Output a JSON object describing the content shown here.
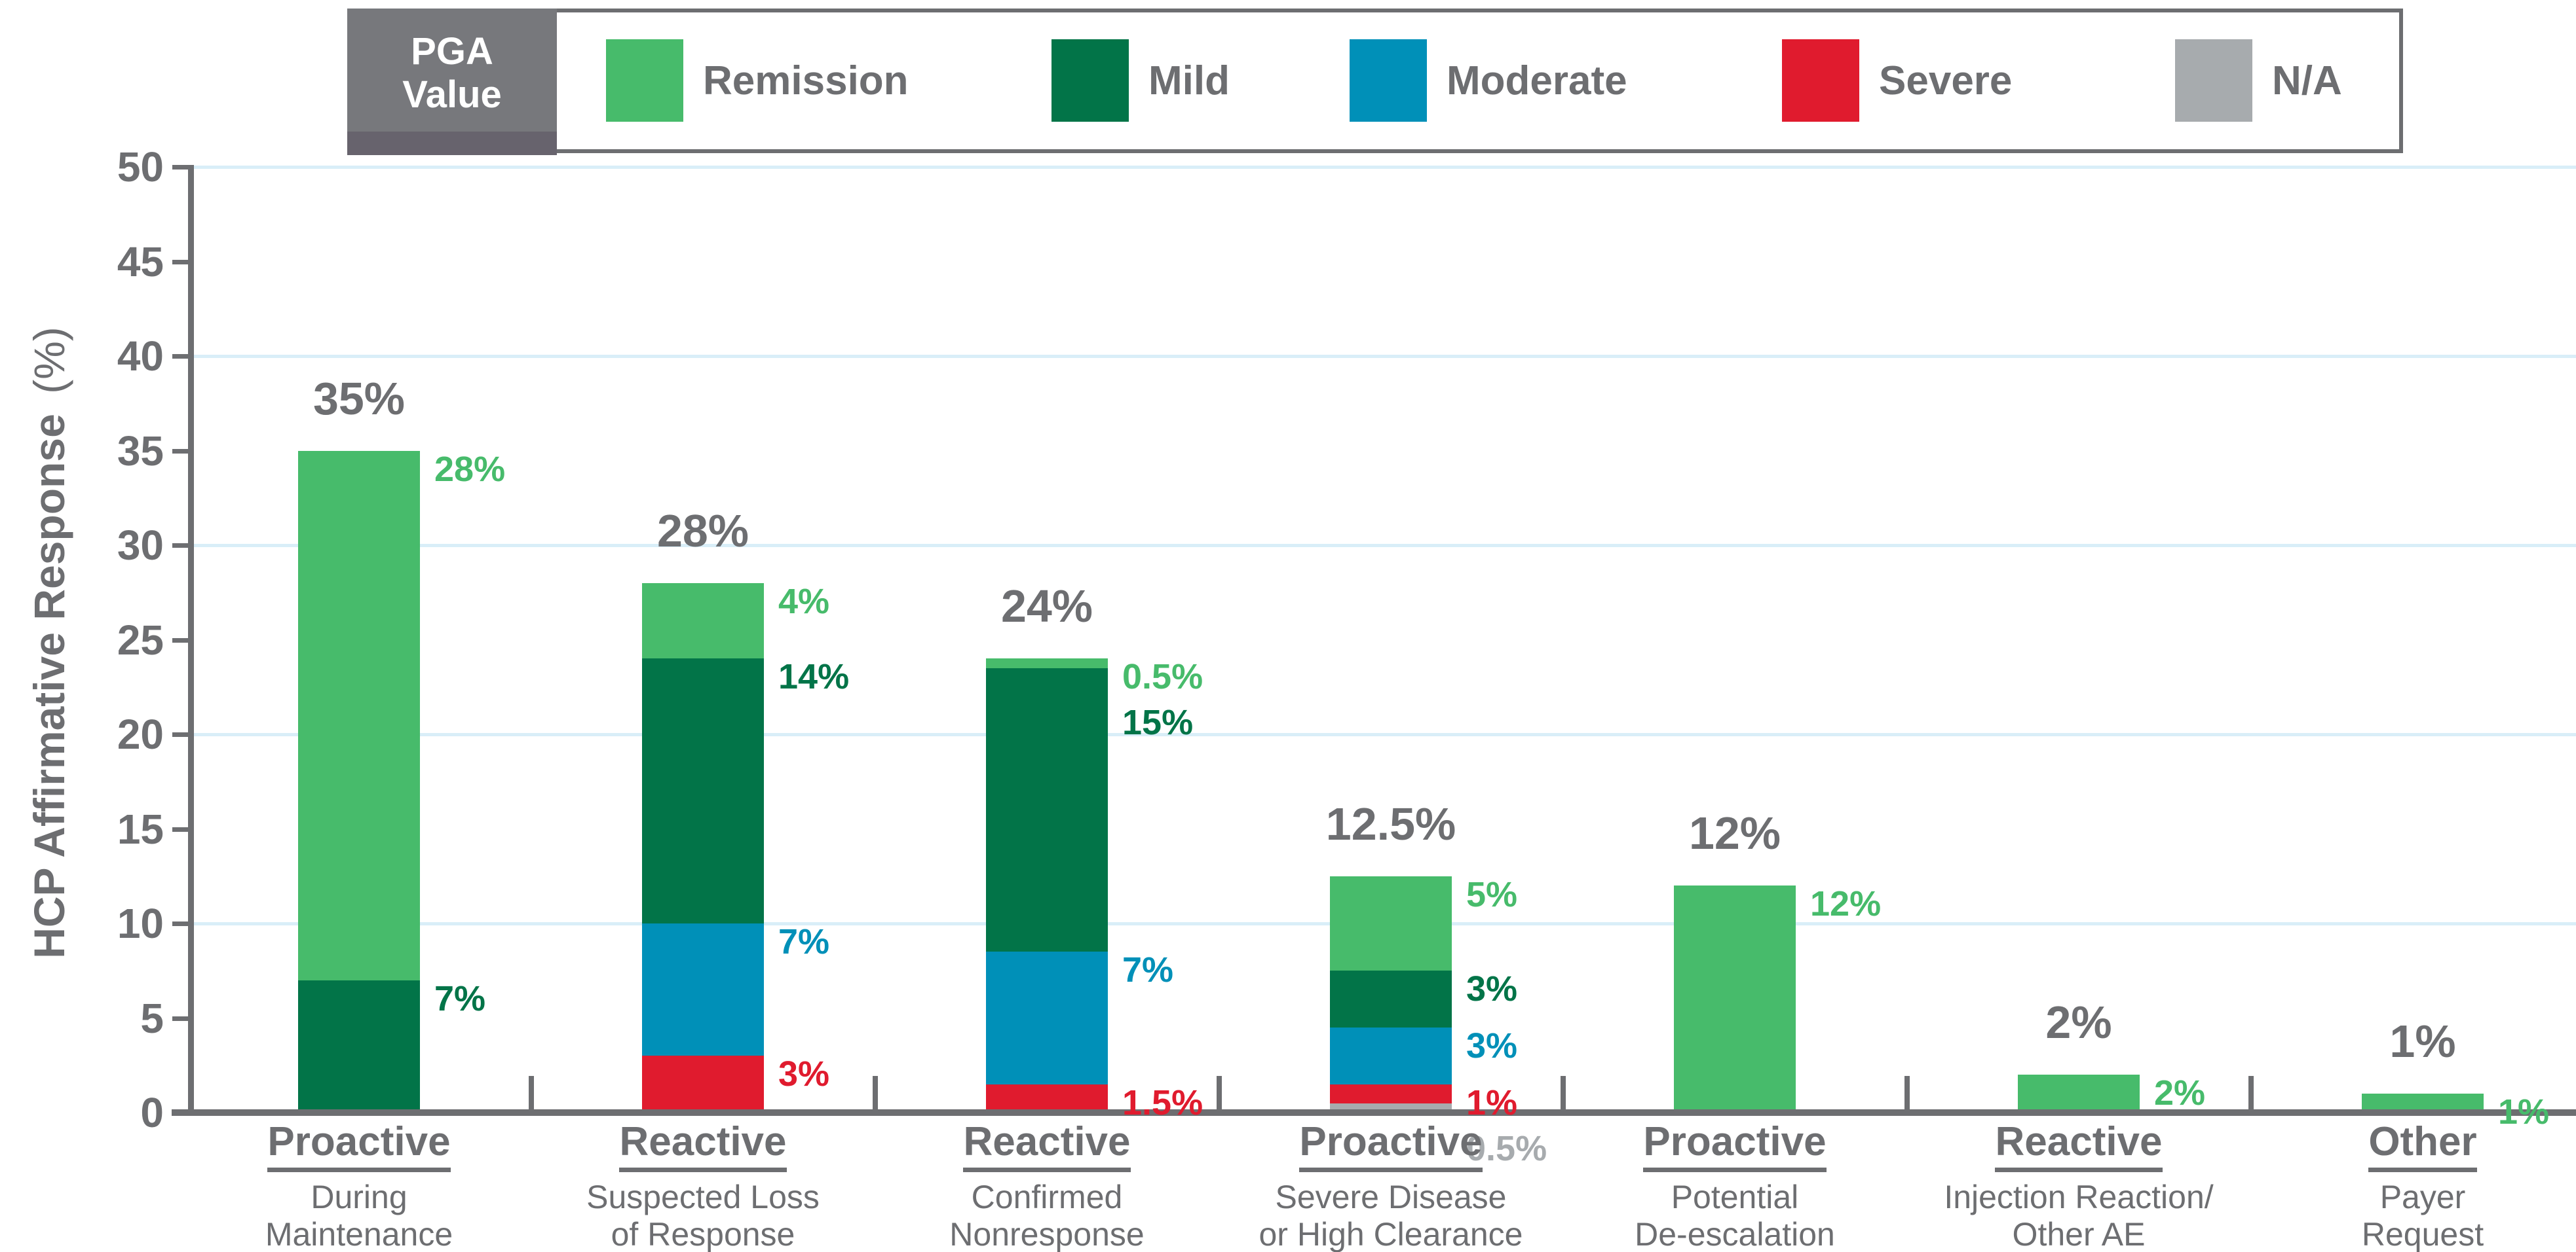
{
  "colors": {
    "remission": "#47BB6B",
    "mild": "#027448",
    "moderate": "#0090B8",
    "severe": "#E01B2E",
    "na": "#A7ABAE",
    "axis_text": "#6D6E71",
    "axis_line": "#6D6E71",
    "gridline": "#D9EEF8",
    "legend_border": "#6D6E71",
    "legend_header_bg": "#77787C",
    "legend_header_shadow": "#67636D"
  },
  "legend": {
    "header_line1": "PGA",
    "header_line2": "Value",
    "items": [
      {
        "key": "remission",
        "label": "Remission"
      },
      {
        "key": "mild",
        "label": "Mild"
      },
      {
        "key": "moderate",
        "label": "Moderate"
      },
      {
        "key": "severe",
        "label": "Severe"
      },
      {
        "key": "na",
        "label": "N/A"
      }
    ]
  },
  "chart_data": {
    "type": "bar",
    "stacked": true,
    "ylabel": "HCP Affirmative Response (%)",
    "ylabel_main": "HCP Affirmative Response",
    "ylabel_unit": "(%)",
    "ylim": [
      0,
      50
    ],
    "yticks": [
      0,
      5,
      10,
      15,
      20,
      25,
      30,
      35,
      40,
      45,
      50
    ],
    "gridlines": [
      10,
      20,
      30,
      40,
      50
    ],
    "grid": true,
    "legend_position": "top",
    "stack_order_bottom_to_top": [
      "na",
      "severe",
      "moderate",
      "mild",
      "remission"
    ],
    "categories": [
      {
        "title": "Proactive",
        "subtitle": [
          "During",
          "Maintenance"
        ],
        "total": 35,
        "total_label": "35%",
        "segments": [
          {
            "key": "mild",
            "value": 7,
            "label": "7%"
          },
          {
            "key": "remission",
            "value": 28,
            "label": "28%"
          }
        ]
      },
      {
        "title": "Reactive",
        "subtitle": [
          "Suspected Loss",
          "of Response"
        ],
        "total": 28,
        "total_label": "28%",
        "segments": [
          {
            "key": "severe",
            "value": 3,
            "label": "3%"
          },
          {
            "key": "moderate",
            "value": 7,
            "label": "7%"
          },
          {
            "key": "mild",
            "value": 14,
            "label": "14%"
          },
          {
            "key": "remission",
            "value": 4,
            "label": "4%"
          }
        ]
      },
      {
        "title": "Reactive",
        "subtitle": [
          "Confirmed",
          "Nonresponse"
        ],
        "total": 24,
        "total_label": "24%",
        "segments": [
          {
            "key": "severe",
            "value": 1.5,
            "label": "1.5%"
          },
          {
            "key": "moderate",
            "value": 7,
            "label": "7%"
          },
          {
            "key": "mild",
            "value": 15,
            "label": "15%"
          },
          {
            "key": "remission",
            "value": 0.5,
            "label": "0.5%"
          }
        ]
      },
      {
        "title": "Proactive",
        "subtitle": [
          "Severe Disease",
          "or High Clearance"
        ],
        "total": 12.5,
        "total_label": "12.5%",
        "segments": [
          {
            "key": "na",
            "value": 0.5,
            "label": "0.5%"
          },
          {
            "key": "severe",
            "value": 1,
            "label": "1%"
          },
          {
            "key": "moderate",
            "value": 3,
            "label": "3%"
          },
          {
            "key": "mild",
            "value": 3,
            "label": "3%"
          },
          {
            "key": "remission",
            "value": 5,
            "label": "5%"
          }
        ]
      },
      {
        "title": "Proactive",
        "subtitle": [
          "Potential",
          "De-escalation"
        ],
        "total": 12,
        "total_label": "12%",
        "segments": [
          {
            "key": "remission",
            "value": 12,
            "label": "12%"
          }
        ]
      },
      {
        "title": "Reactive",
        "subtitle": [
          "Injection Reaction/",
          "Other AE"
        ],
        "total": 2,
        "total_label": "2%",
        "segments": [
          {
            "key": "remission",
            "value": 2,
            "label": "2%"
          }
        ]
      },
      {
        "title": "Other",
        "subtitle": [
          "Payer",
          "Request"
        ],
        "total": 1,
        "total_label": "1%",
        "segments": [
          {
            "key": "remission",
            "value": 1,
            "label": "1%"
          }
        ]
      }
    ]
  }
}
